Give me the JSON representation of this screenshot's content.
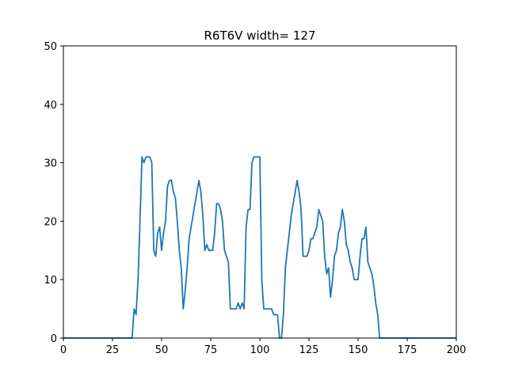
{
  "chart_data": {
    "type": "line",
    "title": "R6T6V width= 127",
    "xlabel": "",
    "ylabel": "",
    "xlim": [
      0,
      200
    ],
    "ylim": [
      0,
      50
    ],
    "xticks": [
      0,
      25,
      50,
      75,
      100,
      125,
      150,
      175,
      200
    ],
    "yticks": [
      0,
      10,
      20,
      30,
      40,
      50
    ],
    "grid": false,
    "line_color": "#1f77b4",
    "series": [
      {
        "x": [
          0,
          35,
          36,
          37,
          38,
          39,
          40,
          41,
          42,
          43,
          44,
          45,
          46,
          47,
          48,
          49,
          50,
          51,
          52,
          53,
          54,
          55,
          56,
          57,
          58,
          59,
          60,
          61,
          62,
          63,
          64,
          65,
          66,
          67,
          68,
          69,
          70,
          71,
          72,
          73,
          74,
          75,
          76,
          77,
          78,
          79,
          80,
          81,
          82,
          83,
          84,
          85,
          86,
          87,
          88,
          89,
          90,
          91,
          92,
          93,
          94,
          95,
          96,
          97,
          98,
          99,
          100,
          101,
          102,
          103,
          104,
          105,
          106,
          107,
          108,
          109,
          110,
          111,
          112,
          113,
          114,
          115,
          116,
          117,
          118,
          119,
          120,
          121,
          122,
          123,
          124,
          125,
          126,
          127,
          128,
          129,
          130,
          131,
          132,
          133,
          134,
          135,
          136,
          137,
          138,
          139,
          140,
          141,
          142,
          143,
          144,
          145,
          146,
          147,
          148,
          149,
          150,
          151,
          152,
          153,
          154,
          155,
          156,
          157,
          158,
          159,
          160,
          161,
          162,
          200
        ],
        "y": [
          0,
          0,
          5,
          4,
          10,
          20,
          31,
          30,
          31,
          31,
          31,
          30,
          15,
          14,
          18,
          19,
          15,
          18,
          20,
          26,
          27,
          27,
          25,
          24,
          20,
          15,
          12,
          5,
          8,
          12,
          17,
          19,
          21,
          23,
          25,
          27,
          25,
          21,
          15,
          16,
          15,
          15,
          15,
          18,
          23,
          23,
          22,
          20,
          15,
          14,
          13,
          5,
          5,
          5,
          5,
          6,
          5,
          6,
          5,
          19,
          22,
          22,
          30,
          31,
          31,
          31,
          31,
          10,
          5,
          5,
          5,
          5,
          5,
          4,
          4,
          4,
          0,
          0,
          4,
          12,
          15,
          18,
          21,
          23,
          25,
          27,
          25,
          22,
          14,
          14,
          14,
          15,
          17,
          17,
          18,
          19,
          22,
          21,
          20,
          14,
          11,
          12,
          7,
          10,
          14,
          15,
          18,
          19,
          22,
          20,
          16,
          15,
          13,
          12,
          10,
          10,
          10,
          14,
          17,
          17,
          19,
          13,
          12,
          11,
          9,
          6,
          4,
          0,
          0,
          0
        ]
      }
    ]
  }
}
